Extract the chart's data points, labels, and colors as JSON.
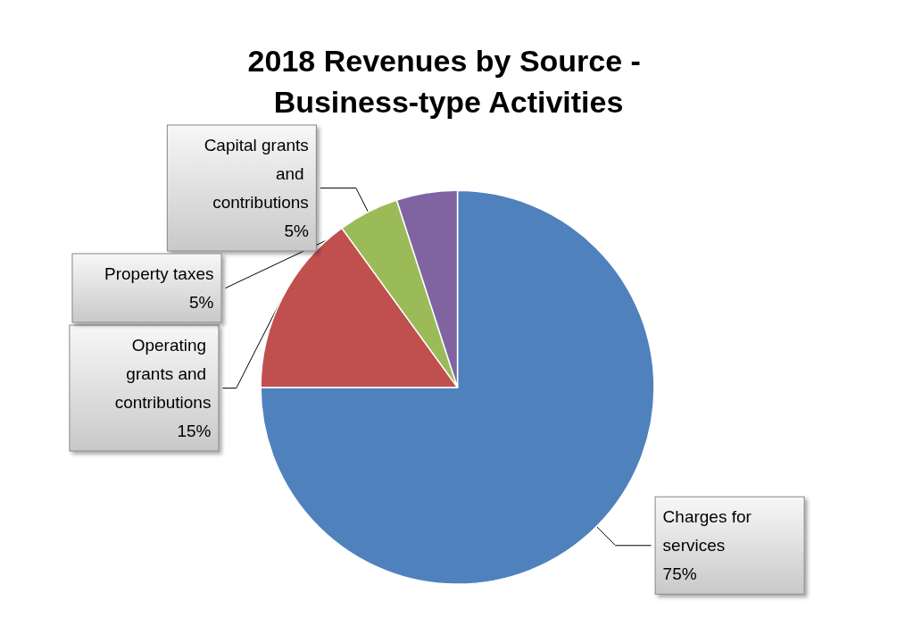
{
  "chart_data": {
    "type": "pie",
    "title": "2018 Revenues by Source - Business-type Activities",
    "categories": [
      "Charges for services",
      "Operating grants and contributions",
      "Capital grants and contributions",
      "Property taxes"
    ],
    "values": [
      75,
      15,
      5,
      5
    ],
    "colors": [
      "#4f81bd",
      "#c0504d",
      "#9bbb59",
      "#8064a2"
    ],
    "value_labels": [
      "75%",
      "15%",
      "5%",
      "5%"
    ],
    "legend": false
  }
}
